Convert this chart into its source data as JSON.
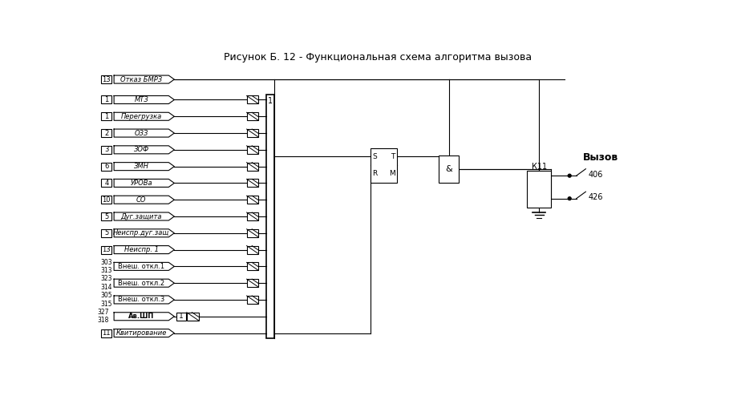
{
  "title": "Рисунок Б. 12 - Функциональная схема алгоритма вызова",
  "rows_main": [
    {
      "num": "1",
      "label": "МТЗ",
      "italic": true
    },
    {
      "num": "1",
      "label": "Перегрузка",
      "italic": true
    },
    {
      "num": "2",
      "label": "ОЗЗ",
      "italic": true
    },
    {
      "num": "3",
      "label": "ЗОФ",
      "italic": true
    },
    {
      "num": "6",
      "label": "ЗМН",
      "italic": true
    },
    {
      "num": "4",
      "label": "УРОВа",
      "italic": true
    },
    {
      "num": "10",
      "label": "СО",
      "italic": true
    },
    {
      "num": "5",
      "label": "Дуг.защита",
      "italic": true
    },
    {
      "num": "5",
      "label": "Неиспр.дуг.защ",
      "italic": true
    },
    {
      "num": "13",
      "label": "Неиспр. 1",
      "italic": true
    },
    {
      "num": "303\n313",
      "label": "Внеш. откл.1",
      "italic": false
    },
    {
      "num": "323\n314",
      "label": "Внеш. откл.2",
      "italic": false
    },
    {
      "num": "305\n315",
      "label": "Внеш. откл.3",
      "italic": false
    }
  ],
  "otk_num": "13",
  "otk_label": "Отказ БМРЗ",
  "av_nums": "327\n318",
  "av_label": "Ав.ШП",
  "kv_num": "11",
  "kv_label": "Квитирование",
  "vyzov_label": "Вызов",
  "k11_label": "К11",
  "out_406": "406",
  "out_426": "426",
  "sr_s": "S",
  "sr_t": "T",
  "sr_r": "R",
  "sr_m": "M",
  "and_sym": "&"
}
